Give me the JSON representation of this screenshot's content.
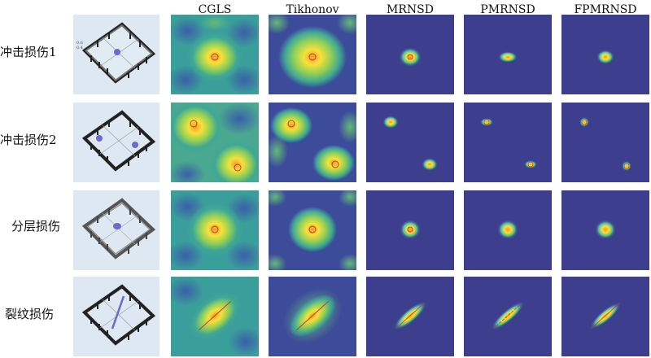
{
  "columns": [
    "CGLS",
    "Tikhonov",
    "MRNSD",
    "PMRNSD",
    "FPMRNSD"
  ],
  "rows": [
    {
      "label": "冲击损伤1"
    },
    {
      "label": "冲击损伤2"
    },
    {
      "label": "分层损伤"
    },
    {
      "label": "裂纹损伤"
    }
  ],
  "colors": {
    "colormap_low": "#3b3f8f",
    "colormap_mid": "#4fae8c",
    "colormap_high": "#f7e13a",
    "peak": "#f2992c",
    "damage_marker": "#c0392b",
    "model_background": "#dde8f2",
    "damage_shape": "#6a6ad0"
  }
}
